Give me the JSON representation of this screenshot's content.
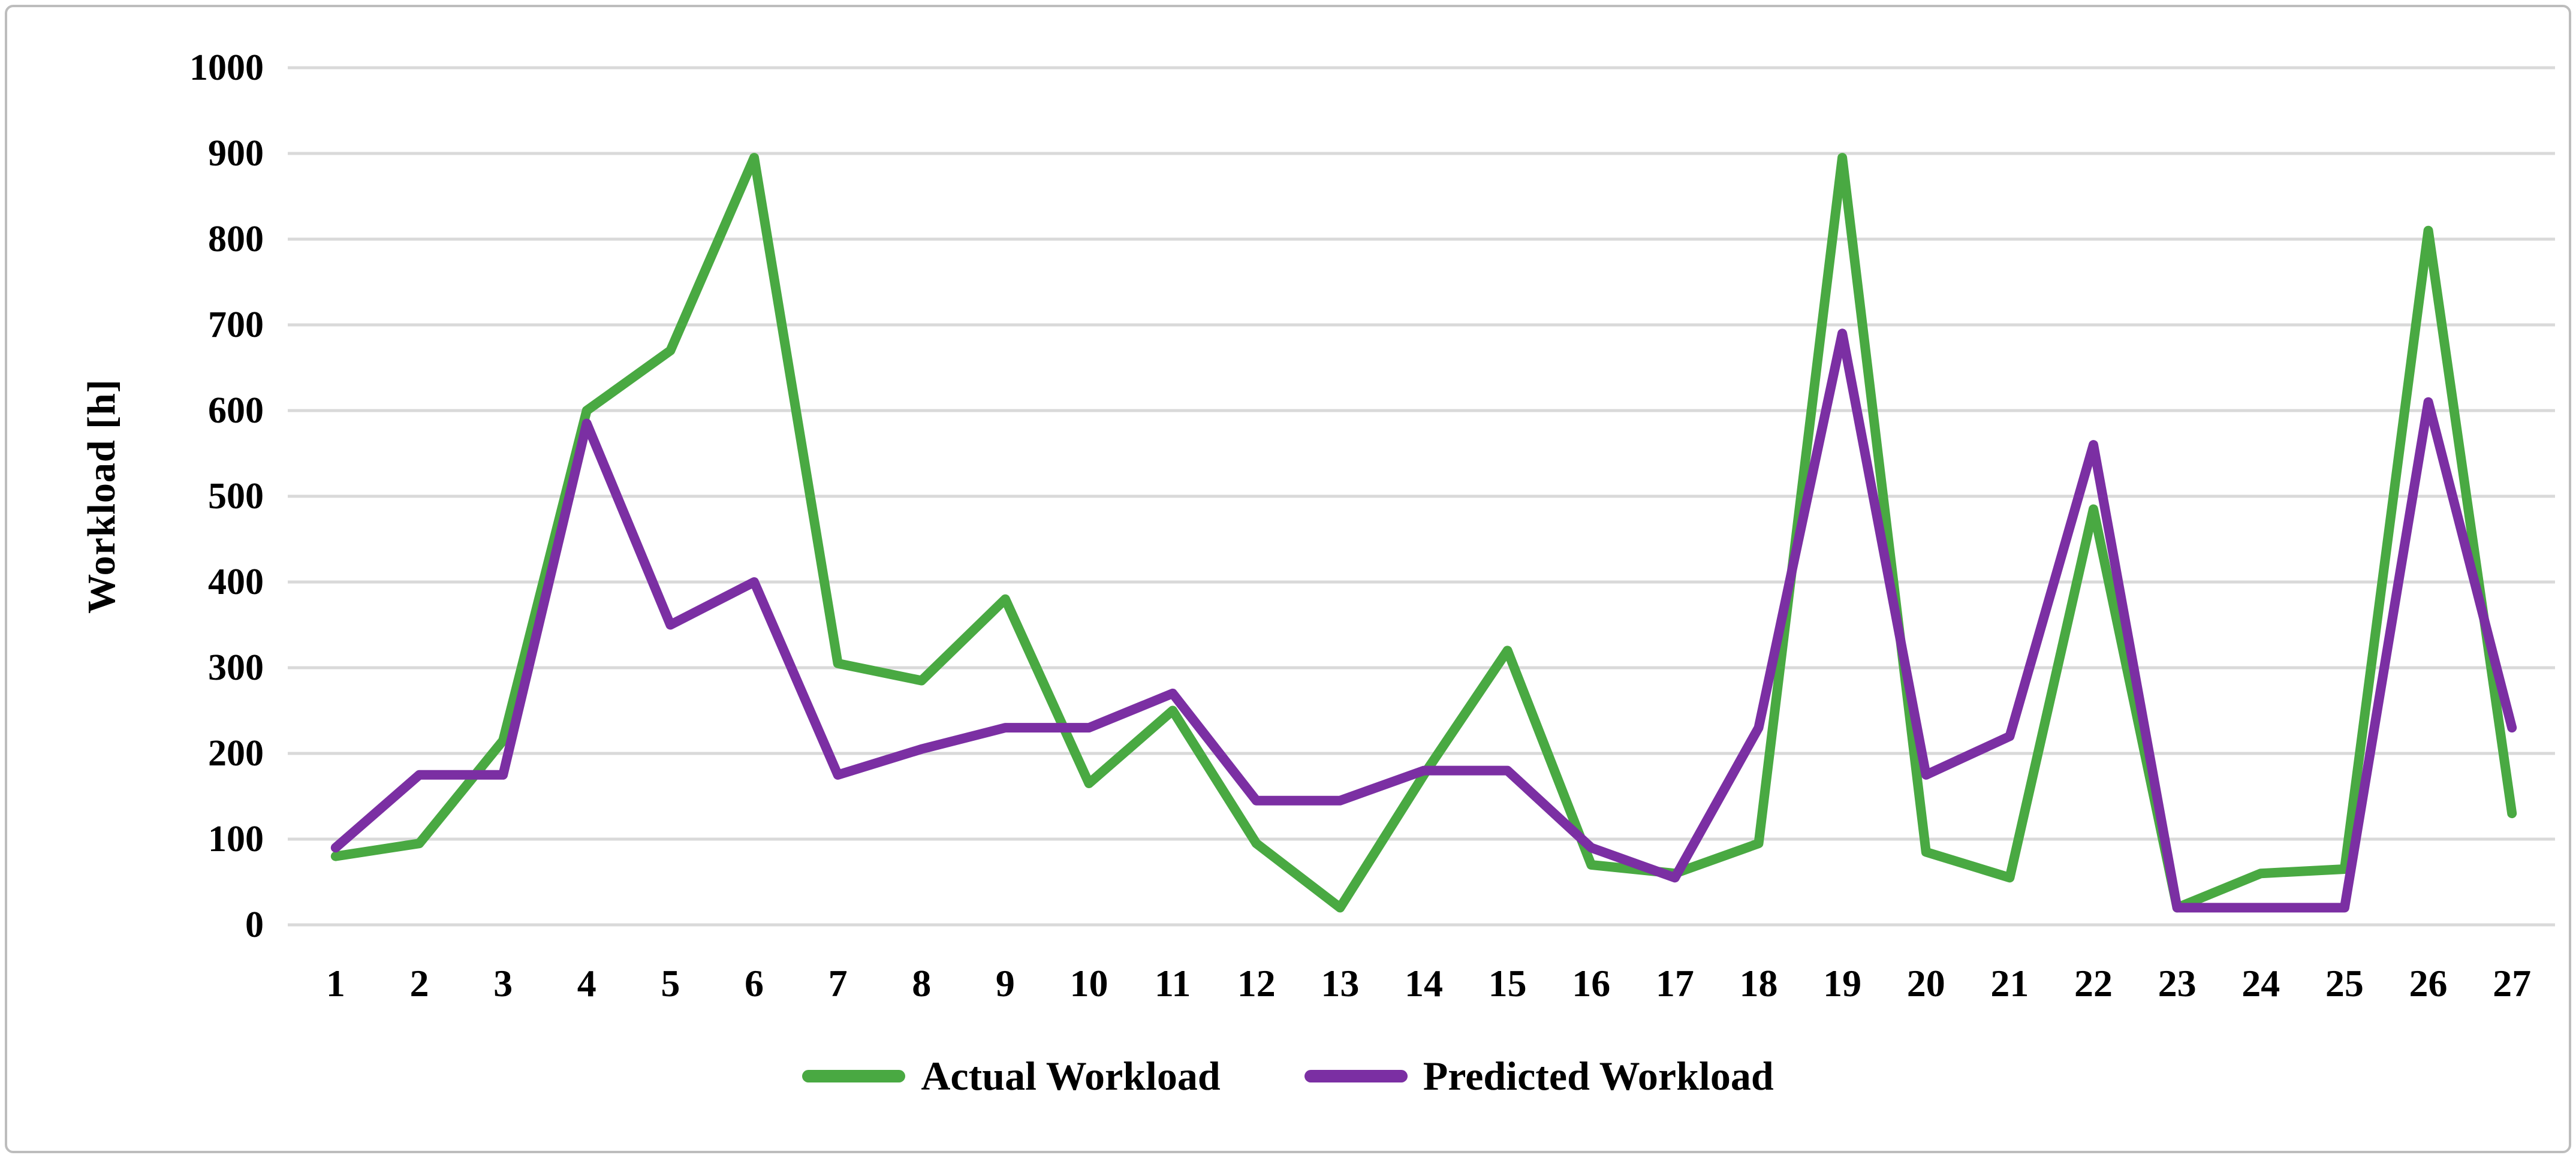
{
  "chart_data": {
    "type": "line",
    "x_ticks": [
      "1",
      "2",
      "3",
      "4",
      "5",
      "6",
      "7",
      "8",
      "9",
      "10",
      "11",
      "12",
      "13",
      "14",
      "15",
      "16",
      "17",
      "18",
      "19",
      "20",
      "21",
      "22",
      "23",
      "24",
      "25",
      "26",
      "27"
    ],
    "y_ticks": [
      "0",
      "100",
      "200",
      "300",
      "400",
      "500",
      "600",
      "700",
      "800",
      "900",
      "1000"
    ],
    "ylim": [
      0,
      1000
    ],
    "ytick_step": 100,
    "xlabel": "",
    "ylabel": "Workload [h]",
    "title": "",
    "grid": true,
    "legend_position": "bottom",
    "series": [
      {
        "name": "Actual Workload",
        "color": "#49A942",
        "values": [
          80,
          95,
          215,
          600,
          670,
          895,
          305,
          285,
          380,
          165,
          250,
          95,
          20,
          175,
          320,
          70,
          60,
          95,
          895,
          85,
          55,
          485,
          20,
          60,
          65,
          810,
          130
        ]
      },
      {
        "name": "Predicted Workload",
        "color": "#7B2FA3",
        "values": [
          90,
          175,
          175,
          585,
          350,
          400,
          175,
          205,
          230,
          230,
          270,
          145,
          145,
          180,
          180,
          90,
          55,
          230,
          690,
          175,
          220,
          560,
          20,
          20,
          20,
          610,
          230
        ]
      }
    ],
    "style": {
      "grid_color": "#D9D9D9",
      "frame_border_color": "#BDBDBD",
      "text_color": "#000000",
      "background": "#FFFFFF"
    }
  },
  "legend": {
    "items": [
      {
        "label": "Actual Workload"
      },
      {
        "label": "Predicted Workload"
      }
    ]
  }
}
